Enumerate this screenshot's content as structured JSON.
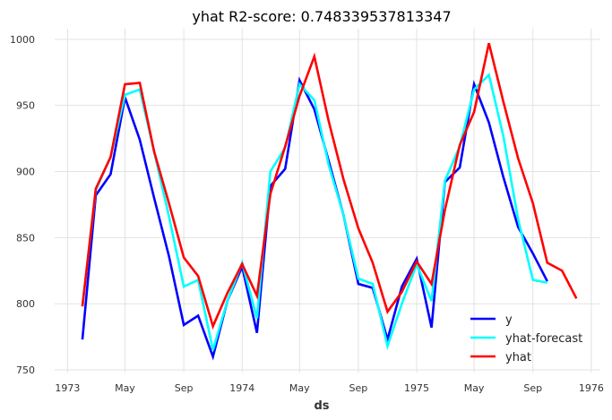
{
  "chart_data": {
    "type": "line",
    "title": "yhat R2-score: 0.748339537813347",
    "xlabel": "ds",
    "ylabel": "",
    "ylim": [
      748,
      1008
    ],
    "xlim": [
      "1972-12-05",
      "1976-01-20"
    ],
    "x_ticks": [
      {
        "date": "1973-01-01",
        "label": "1973"
      },
      {
        "date": "1973-05-01",
        "label": "May"
      },
      {
        "date": "1973-09-01",
        "label": "Sep"
      },
      {
        "date": "1974-01-01",
        "label": "1974"
      },
      {
        "date": "1974-05-01",
        "label": "May"
      },
      {
        "date": "1974-09-01",
        "label": "Sep"
      },
      {
        "date": "1975-01-01",
        "label": "1975"
      },
      {
        "date": "1975-05-01",
        "label": "May"
      },
      {
        "date": "1975-09-01",
        "label": "Sep"
      },
      {
        "date": "1976-01-01",
        "label": "1976"
      }
    ],
    "y_ticks": [
      750,
      800,
      850,
      900,
      950,
      1000
    ],
    "grid": true,
    "legend": "lower-right",
    "series": [
      {
        "name": "y",
        "color": "#0000ff",
        "points": [
          [
            "1973-02-01",
            773
          ],
          [
            "1973-03-01",
            882
          ],
          [
            "1973-04-01",
            898
          ],
          [
            "1973-05-01",
            956
          ],
          [
            "1973-06-01",
            924
          ],
          [
            "1973-07-01",
            880
          ],
          [
            "1973-08-01",
            836
          ],
          [
            "1973-09-01",
            784
          ],
          [
            "1973-10-01",
            791
          ],
          [
            "1973-11-01",
            760
          ],
          [
            "1973-12-01",
            802
          ],
          [
            "1974-01-01",
            828
          ],
          [
            "1974-02-01",
            778
          ],
          [
            "1974-03-01",
            889
          ],
          [
            "1974-04-01",
            902
          ],
          [
            "1974-05-01",
            969
          ],
          [
            "1974-06-01",
            947
          ],
          [
            "1974-07-01",
            908
          ],
          [
            "1974-08-01",
            867
          ],
          [
            "1974-09-01",
            815
          ],
          [
            "1974-10-01",
            812
          ],
          [
            "1974-11-01",
            773
          ],
          [
            "1974-12-01",
            813
          ],
          [
            "1975-01-01",
            834
          ],
          [
            "1975-02-01",
            782
          ],
          [
            "1975-03-01",
            892
          ],
          [
            "1975-04-01",
            903
          ],
          [
            "1975-05-01",
            966
          ],
          [
            "1975-06-01",
            937
          ],
          [
            "1975-07-01",
            896
          ],
          [
            "1975-08-01",
            858
          ],
          [
            "1975-09-01",
            838
          ],
          [
            "1975-10-01",
            817
          ]
        ]
      },
      {
        "name": "yhat-forecast",
        "color": "#00ffff",
        "points": [
          [
            "1973-02-01",
            798
          ],
          [
            "1973-03-01",
            886
          ],
          [
            "1973-04-01",
            911
          ],
          [
            "1973-05-01",
            958
          ],
          [
            "1973-06-01",
            962
          ],
          [
            "1973-07-01",
            915
          ],
          [
            "1973-08-01",
            866
          ],
          [
            "1973-09-01",
            813
          ],
          [
            "1973-10-01",
            818
          ],
          [
            "1973-11-01",
            765
          ],
          [
            "1973-12-01",
            802
          ],
          [
            "1974-01-01",
            831
          ],
          [
            "1974-02-01",
            789
          ],
          [
            "1974-03-01",
            900
          ],
          [
            "1974-04-01",
            918
          ],
          [
            "1974-05-01",
            966
          ],
          [
            "1974-06-01",
            954
          ],
          [
            "1974-07-01",
            905
          ],
          [
            "1974-08-01",
            867
          ],
          [
            "1974-09-01",
            819
          ],
          [
            "1974-10-01",
            815
          ],
          [
            "1974-11-01",
            768
          ],
          [
            "1974-12-01",
            800
          ],
          [
            "1975-01-01",
            830
          ],
          [
            "1975-02-01",
            802
          ],
          [
            "1975-03-01",
            893
          ],
          [
            "1975-04-01",
            919
          ],
          [
            "1975-05-01",
            962
          ],
          [
            "1975-06-01",
            973
          ],
          [
            "1975-07-01",
            927
          ],
          [
            "1975-08-01",
            864
          ],
          [
            "1975-09-01",
            818
          ],
          [
            "1975-10-01",
            816
          ]
        ]
      },
      {
        "name": "yhat",
        "color": "#ff0000",
        "points": [
          [
            "1973-02-01",
            798
          ],
          [
            "1973-03-01",
            887
          ],
          [
            "1973-04-01",
            911
          ],
          [
            "1973-05-01",
            966
          ],
          [
            "1973-06-01",
            967
          ],
          [
            "1973-07-01",
            915
          ],
          [
            "1973-08-01",
            876
          ],
          [
            "1973-09-01",
            835
          ],
          [
            "1973-10-01",
            821
          ],
          [
            "1973-11-01",
            783
          ],
          [
            "1973-12-01",
            808
          ],
          [
            "1974-01-01",
            830
          ],
          [
            "1974-02-01",
            806
          ],
          [
            "1974-03-01",
            883
          ],
          [
            "1974-04-01",
            919
          ],
          [
            "1974-05-01",
            957
          ],
          [
            "1974-06-01",
            987
          ],
          [
            "1974-07-01",
            938
          ],
          [
            "1974-08-01",
            894
          ],
          [
            "1974-09-01",
            857
          ],
          [
            "1974-10-01",
            831
          ],
          [
            "1974-11-01",
            794
          ],
          [
            "1974-12-01",
            809
          ],
          [
            "1975-01-01",
            832
          ],
          [
            "1975-02-01",
            815
          ],
          [
            "1975-03-01",
            871
          ],
          [
            "1975-04-01",
            920
          ],
          [
            "1975-05-01",
            945
          ],
          [
            "1975-06-01",
            997
          ],
          [
            "1975-07-01",
            953
          ],
          [
            "1975-08-01",
            910
          ],
          [
            "1975-09-01",
            876
          ],
          [
            "1975-10-01",
            831
          ],
          [
            "1975-11-01",
            825
          ],
          [
            "1975-12-01",
            804
          ]
        ]
      }
    ]
  }
}
